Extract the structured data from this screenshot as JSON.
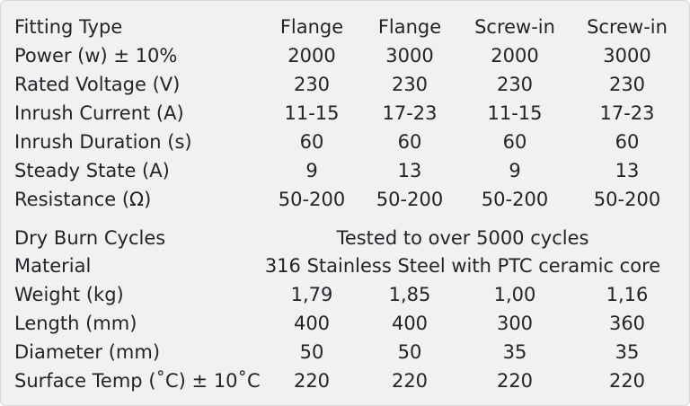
{
  "rows": [
    {
      "label": "Fitting Type",
      "values": [
        "Flange",
        "Flange",
        "Screw-in",
        "Screw-in"
      ]
    },
    {
      "label": "Power (w) ± 10%",
      "values": [
        "2000",
        "3000",
        "2000",
        "3000"
      ]
    },
    {
      "label": "Rated Voltage (V)",
      "values": [
        "230",
        "230",
        "230",
        "230"
      ]
    },
    {
      "label": "Inrush Current (A)",
      "values": [
        "11-15",
        "17-23",
        "11-15",
        "17-23"
      ]
    },
    {
      "label": "Inrush Duration (s)",
      "values": [
        "60",
        "60",
        "60",
        "60"
      ]
    },
    {
      "label": "Steady State (A)",
      "values": [
        "9",
        "13",
        "9",
        "13"
      ]
    },
    {
      "label": "Resistance (Ω)",
      "values": [
        "50-200",
        "50-200",
        "50-200",
        "50-200"
      ]
    },
    {
      "label": "Dry Burn Cycles",
      "span_value": "Tested to over 5000 cycles"
    },
    {
      "label": "Material",
      "span_value": "316 Stainless Steel with PTC ceramic core"
    },
    {
      "label": "Weight (kg)",
      "values": [
        "1,79",
        "1,85",
        "1,00",
        "1,16"
      ]
    },
    {
      "label": "Length (mm)",
      "values": [
        "400",
        "400",
        "300",
        "360"
      ]
    },
    {
      "label": "Diameter (mm)",
      "values": [
        "50",
        "50",
        "35",
        "35"
      ]
    },
    {
      "label": "Surface Temp (˚C) ± 10˚C",
      "values": [
        "220",
        "220",
        "220",
        "220"
      ]
    }
  ]
}
